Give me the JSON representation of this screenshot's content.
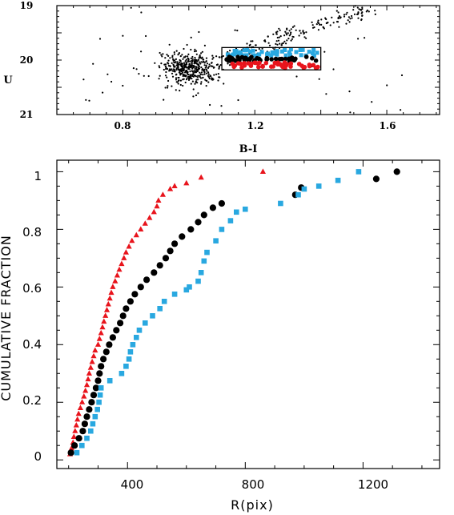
{
  "colors": {
    "black": "#000000",
    "blue": "#29a8e0",
    "red": "#e8141c"
  },
  "chart_data": [
    {
      "type": "scatter",
      "title": "",
      "xlabel": "B-I",
      "ylabel": "U",
      "xlim": [
        0.6,
        1.76
      ],
      "ylim": [
        21,
        19
      ],
      "y_inverted": true,
      "xticks": [
        "0.8",
        "1.2",
        "1.6"
      ],
      "yticks": [
        "19",
        "20",
        "21"
      ],
      "selection_box": {
        "x": [
          1.1,
          1.4
        ],
        "y": [
          19.77,
          20.18
        ]
      },
      "series": [
        {
          "color": "black",
          "marker": "dot",
          "seed": 7,
          "count": 650,
          "distribution": "two-branch cloud: clump centered near (1.0, 20.1), branch rising to (1.55, 19.0)"
        },
        {
          "color": "blue",
          "marker": "square",
          "band": {
            "x": [
              1.1,
              1.4
            ],
            "y": [
              19.8,
              19.92
            ]
          }
        },
        {
          "color": "black",
          "marker": "circle",
          "band": {
            "x": [
              1.1,
              1.4
            ],
            "y": [
              19.94,
              20.02
            ]
          }
        },
        {
          "color": "red",
          "marker": "circle",
          "band": {
            "x": [
              1.1,
              1.4
            ],
            "y": [
              20.04,
              20.15
            ]
          }
        }
      ]
    },
    {
      "type": "scatter",
      "title": "",
      "xlabel": "R(pix)",
      "ylabel": "CUMULATIVE FRACTION",
      "xlim": [
        160,
        1460
      ],
      "ylim": [
        -0.03,
        1.04
      ],
      "xticks": [
        "400",
        "800",
        "1200"
      ],
      "yticks": [
        "0",
        "0.2",
        "0.4",
        "0.6",
        "0.8",
        "1"
      ],
      "series": [
        {
          "color": "red",
          "marker": "triangle",
          "points": [
            [
              205,
              0.02
            ],
            [
              210,
              0.04
            ],
            [
              215,
              0.06
            ],
            [
              218,
              0.08
            ],
            [
              222,
              0.1
            ],
            [
              226,
              0.12
            ],
            [
              230,
              0.14
            ],
            [
              234,
              0.16
            ],
            [
              240,
              0.18
            ],
            [
              246,
              0.2
            ],
            [
              252,
              0.22
            ],
            [
              257,
              0.24
            ],
            [
              262,
              0.26
            ],
            [
              266,
              0.28
            ],
            [
              270,
              0.3
            ],
            [
              275,
              0.32
            ],
            [
              280,
              0.34
            ],
            [
              285,
              0.36
            ],
            [
              290,
              0.38
            ],
            [
              300,
              0.4
            ],
            [
              305,
              0.42
            ],
            [
              310,
              0.44
            ],
            [
              315,
              0.46
            ],
            [
              320,
              0.48
            ],
            [
              325,
              0.5
            ],
            [
              330,
              0.52
            ],
            [
              335,
              0.54
            ],
            [
              340,
              0.56
            ],
            [
              345,
              0.58
            ],
            [
              350,
              0.6
            ],
            [
              358,
              0.62
            ],
            [
              365,
              0.64
            ],
            [
              372,
              0.66
            ],
            [
              380,
              0.68
            ],
            [
              388,
              0.7
            ],
            [
              395,
              0.72
            ],
            [
              405,
              0.74
            ],
            [
              415,
              0.76
            ],
            [
              430,
              0.78
            ],
            [
              445,
              0.8
            ],
            [
              460,
              0.82
            ],
            [
              475,
              0.84
            ],
            [
              490,
              0.86
            ],
            [
              500,
              0.88
            ],
            [
              505,
              0.9
            ],
            [
              520,
              0.92
            ],
            [
              545,
              0.94
            ],
            [
              560,
              0.95
            ],
            [
              600,
              0.96
            ],
            [
              650,
              0.98
            ],
            [
              860,
              1.0
            ]
          ]
        },
        {
          "color": "black",
          "marker": "circle",
          "points": [
            [
              208,
              0.025
            ],
            [
              220,
              0.05
            ],
            [
              235,
              0.075
            ],
            [
              248,
              0.1
            ],
            [
              255,
              0.125
            ],
            [
              262,
              0.15
            ],
            [
              270,
              0.175
            ],
            [
              278,
              0.2
            ],
            [
              285,
              0.225
            ],
            [
              293,
              0.25
            ],
            [
              300,
              0.275
            ],
            [
              305,
              0.3
            ],
            [
              310,
              0.325
            ],
            [
              318,
              0.35
            ],
            [
              328,
              0.375
            ],
            [
              338,
              0.4
            ],
            [
              350,
              0.425
            ],
            [
              362,
              0.45
            ],
            [
              375,
              0.475
            ],
            [
              385,
              0.5
            ],
            [
              395,
              0.525
            ],
            [
              410,
              0.55
            ],
            [
              425,
              0.575
            ],
            [
              445,
              0.6
            ],
            [
              465,
              0.625
            ],
            [
              490,
              0.65
            ],
            [
              510,
              0.675
            ],
            [
              530,
              0.7
            ],
            [
              545,
              0.725
            ],
            [
              560,
              0.75
            ],
            [
              585,
              0.775
            ],
            [
              615,
              0.8
            ],
            [
              640,
              0.825
            ],
            [
              660,
              0.85
            ],
            [
              690,
              0.875
            ],
            [
              720,
              0.89
            ],
            [
              970,
              0.92
            ],
            [
              990,
              0.945
            ],
            [
              1245,
              0.975
            ],
            [
              1315,
              1.0
            ]
          ]
        },
        {
          "color": "blue",
          "marker": "square",
          "points": [
            [
              228,
              0.025
            ],
            [
              245,
              0.05
            ],
            [
              262,
              0.075
            ],
            [
              275,
              0.1
            ],
            [
              282,
              0.125
            ],
            [
              290,
              0.15
            ],
            [
              298,
              0.175
            ],
            [
              303,
              0.2
            ],
            [
              307,
              0.225
            ],
            [
              310,
              0.25
            ],
            [
              340,
              0.275
            ],
            [
              380,
              0.3
            ],
            [
              395,
              0.325
            ],
            [
              405,
              0.35
            ],
            [
              410,
              0.375
            ],
            [
              418,
              0.4
            ],
            [
              430,
              0.425
            ],
            [
              440,
              0.45
            ],
            [
              460,
              0.475
            ],
            [
              485,
              0.5
            ],
            [
              510,
              0.525
            ],
            [
              525,
              0.55
            ],
            [
              560,
              0.575
            ],
            [
              600,
              0.59
            ],
            [
              610,
              0.6
            ],
            [
              640,
              0.62
            ],
            [
              650,
              0.65
            ],
            [
              660,
              0.69
            ],
            [
              670,
              0.72
            ],
            [
              700,
              0.76
            ],
            [
              720,
              0.8
            ],
            [
              750,
              0.83
            ],
            [
              770,
              0.86
            ],
            [
              800,
              0.87
            ],
            [
              920,
              0.89
            ],
            [
              980,
              0.92
            ],
            [
              1000,
              0.94
            ],
            [
              1050,
              0.95
            ],
            [
              1115,
              0.97
            ],
            [
              1185,
              1.0
            ]
          ]
        }
      ]
    }
  ]
}
